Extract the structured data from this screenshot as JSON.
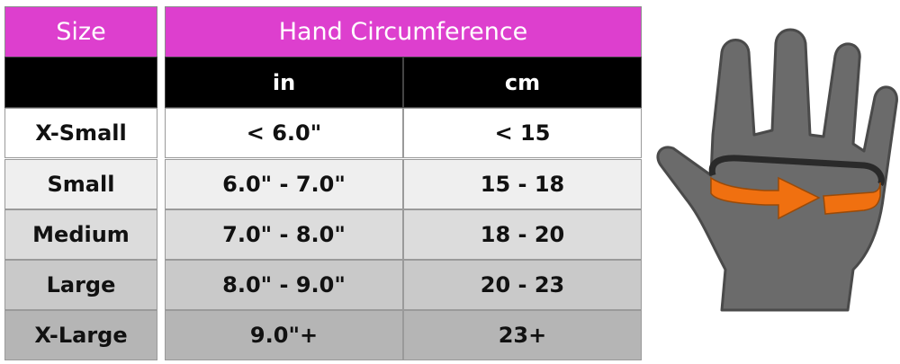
{
  "size_table": {
    "header": "Size",
    "rows": [
      "X-Small",
      "Small",
      "Medium",
      "Large",
      "X-Large"
    ]
  },
  "circumference_table": {
    "header": "Hand Circumference",
    "columns": [
      "in",
      "cm"
    ],
    "rows": [
      [
        "< 6.0\"",
        "< 15"
      ],
      [
        "6.0\" - 7.0\"",
        "15 - 18"
      ],
      [
        "7.0\" - 8.0\"",
        "18 - 20"
      ],
      [
        "8.0\" - 9.0\"",
        "20 - 23"
      ],
      [
        "9.0\"+",
        "23+"
      ]
    ]
  }
}
